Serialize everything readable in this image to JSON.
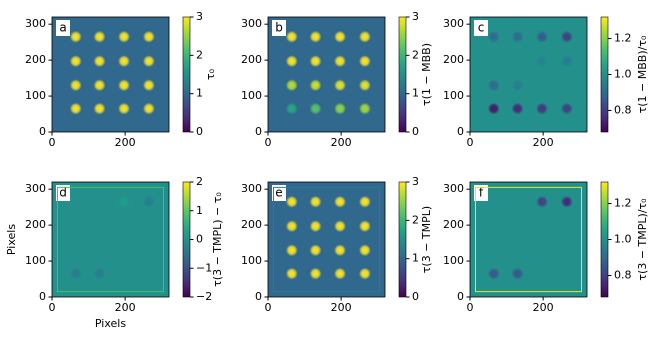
{
  "chart_data": [
    {
      "type": "image",
      "label": "a",
      "xlim": [
        0,
        320
      ],
      "ylim": [
        0,
        320
      ],
      "xticks": [
        0,
        200
      ],
      "yticks": [
        0,
        100,
        200,
        300
      ],
      "spot_x": [
        65,
        130,
        197,
        265
      ],
      "spot_y": [
        265,
        197,
        130,
        65
      ],
      "background": 1.0,
      "frame": false,
      "spots": [
        [
          3,
          3,
          3,
          3
        ],
        [
          3,
          3,
          3,
          3
        ],
        [
          3,
          3,
          3,
          3
        ],
        [
          3,
          3,
          3,
          3
        ]
      ],
      "colorbar": {
        "label": "τ₀",
        "lim": [
          0,
          3
        ],
        "ticks": [
          0,
          1,
          2,
          3
        ]
      }
    },
    {
      "type": "image",
      "label": "b",
      "xlim": [
        0,
        320
      ],
      "ylim": [
        0,
        320
      ],
      "xticks": [
        0,
        200
      ],
      "yticks": [
        0,
        100,
        200,
        300
      ],
      "spot_x": [
        65,
        130,
        197,
        265
      ],
      "spot_y": [
        265,
        197,
        130,
        65
      ],
      "background": 1.0,
      "frame": false,
      "spots": [
        [
          3,
          3,
          3,
          3
        ],
        [
          3,
          3,
          3,
          3
        ],
        [
          2.7,
          2.8,
          2.9,
          2.9
        ],
        [
          1.8,
          2.2,
          2.5,
          2.6
        ]
      ],
      "colorbar": {
        "label": "τ(1 − MBB)",
        "lim": [
          0,
          3
        ],
        "ticks": [
          0,
          1,
          2,
          3
        ]
      }
    },
    {
      "type": "image",
      "label": "c",
      "xlim": [
        0,
        320
      ],
      "ylim": [
        0,
        320
      ],
      "xticks": [
        0,
        200
      ],
      "yticks": [
        0,
        100,
        200,
        300
      ],
      "spot_x": [
        65,
        130,
        197,
        265
      ],
      "spot_y": [
        265,
        197,
        130,
        65
      ],
      "background": 1.0,
      "frame": false,
      "spots": [
        [
          0.9,
          0.9,
          0.86,
          0.8
        ],
        [
          1.0,
          1.0,
          0.97,
          0.95
        ],
        [
          0.9,
          0.95,
          1.0,
          1.0
        ],
        [
          0.72,
          0.75,
          0.78,
          0.8
        ]
      ],
      "colorbar": {
        "label": "τ(1 − MBB)/τ₀",
        "lim": [
          0.68,
          1.32
        ],
        "ticks": [
          0.8,
          {
            "value": 1,
            "label": "1.0"
          },
          1.2
        ]
      }
    },
    {
      "type": "image",
      "label": "d",
      "xlim": [
        0,
        320
      ],
      "ylim": [
        0,
        320
      ],
      "xticks": [
        0,
        200
      ],
      "yticks": [
        0,
        100,
        200,
        300
      ],
      "xlabel": "Pixels",
      "ylabel": "Pixels",
      "spot_x": [
        65,
        130,
        197,
        265
      ],
      "spot_y": [
        265,
        197,
        130,
        65
      ],
      "background": 0,
      "frame": true,
      "frame_value": 0.8,
      "spots": [
        [
          0,
          0,
          0.2,
          -0.3
        ],
        [
          0,
          0,
          0,
          0
        ],
        [
          0,
          0,
          0,
          0
        ],
        [
          -0.3,
          -0.3,
          0,
          0
        ]
      ],
      "colorbar": {
        "label": "τ(3 − TMPL) − τ₀",
        "lim": [
          -2,
          2
        ],
        "ticks": [
          {
            "value": -2,
            "label": "−2"
          },
          {
            "value": -1,
            "label": "−1"
          },
          0,
          1,
          2
        ]
      }
    },
    {
      "type": "image",
      "label": "e",
      "xlim": [
        0,
        320
      ],
      "ylim": [
        0,
        320
      ],
      "xticks": [
        0,
        200
      ],
      "yticks": [
        0,
        100,
        200,
        300
      ],
      "spot_x": [
        65,
        130,
        197,
        265
      ],
      "spot_y": [
        265,
        197,
        130,
        65
      ],
      "background": 1.0,
      "frame": true,
      "frame_value": 1.3,
      "spots": [
        [
          3,
          3,
          3,
          3
        ],
        [
          3,
          3,
          3,
          3
        ],
        [
          3,
          3,
          3,
          3
        ],
        [
          3,
          3,
          3,
          3
        ]
      ],
      "colorbar": {
        "label": "τ(3 − TMPL)",
        "lim": [
          0,
          3
        ],
        "ticks": [
          0,
          1,
          2,
          3
        ]
      }
    },
    {
      "type": "image",
      "label": "f",
      "xlim": [
        0,
        320
      ],
      "ylim": [
        0,
        320
      ],
      "xticks": [
        0,
        200
      ],
      "yticks": [
        0,
        100,
        200,
        300
      ],
      "spot_x": [
        65,
        130,
        197,
        265
      ],
      "spot_y": [
        265,
        197,
        130,
        65
      ],
      "background": 1.0,
      "frame": true,
      "frame_value": 1.3,
      "spots": [
        [
          1,
          1,
          0.8,
          0.75
        ],
        [
          1,
          1,
          1,
          1
        ],
        [
          1,
          1,
          1,
          1
        ],
        [
          0.85,
          0.85,
          1,
          1
        ]
      ],
      "colorbar": {
        "label": "τ(3 − TMPL)/τ₀",
        "lim": [
          0.68,
          1.32
        ],
        "ticks": [
          0.8,
          {
            "value": 1,
            "label": "1.0"
          },
          1.2
        ]
      }
    }
  ]
}
